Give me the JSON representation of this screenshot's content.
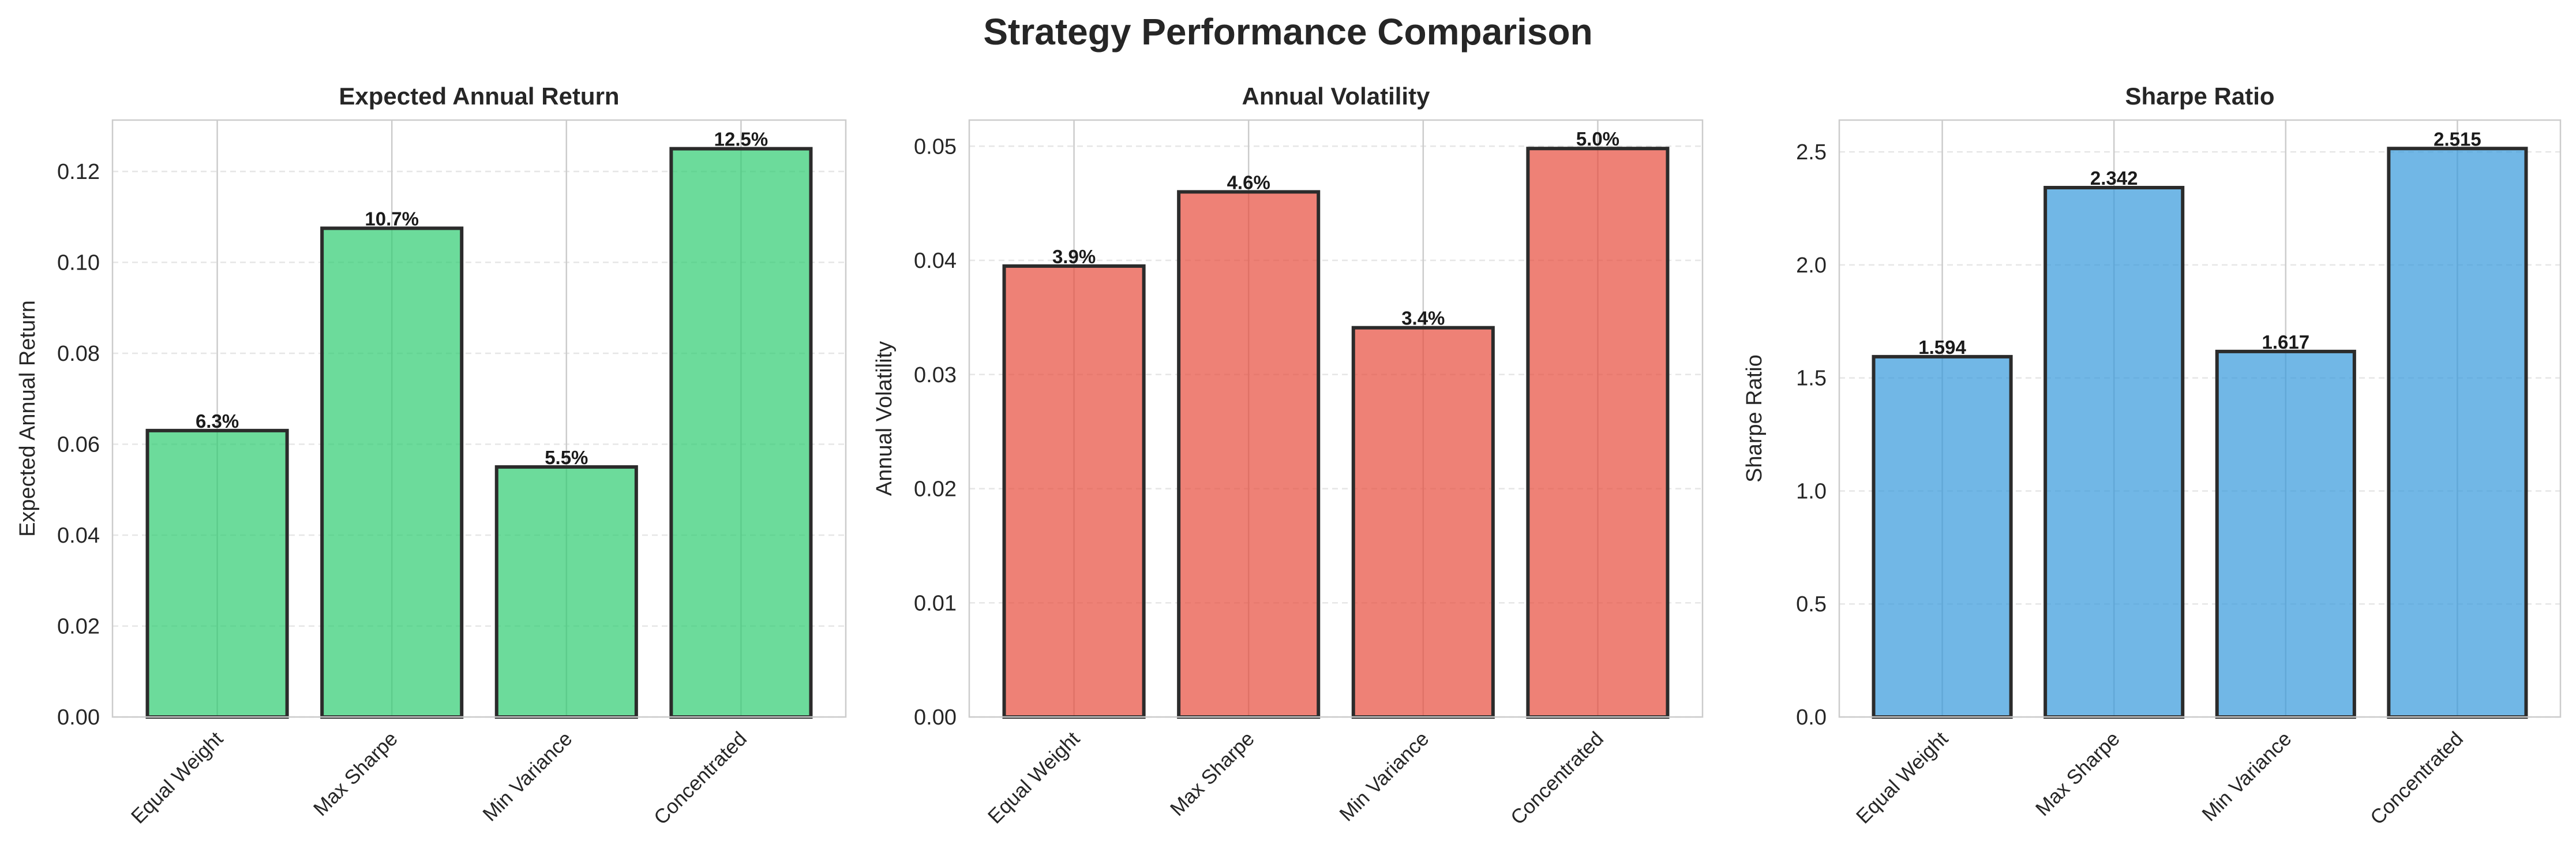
{
  "figure": {
    "title": "Strategy Performance Comparison"
  },
  "chart_data": [
    {
      "type": "bar",
      "title": "Expected Annual Return",
      "xlabel": "",
      "ylabel": "Expected Annual Return",
      "categories": [
        "Equal Weight",
        "Max Sharpe",
        "Min Variance",
        "Concentrated"
      ],
      "values": [
        0.063,
        0.1075,
        0.055,
        0.125
      ],
      "data_labels": [
        "6.3%",
        "10.7%",
        "5.5%",
        "12.5%"
      ],
      "ylim": [
        0,
        0.1313
      ],
      "yticks": [
        0.0,
        0.02,
        0.04,
        0.06,
        0.08,
        0.1,
        0.12
      ],
      "ytick_labels": [
        "0.00",
        "0.02",
        "0.04",
        "0.06",
        "0.08",
        "0.10",
        "0.12"
      ],
      "bar_color": "#2ecc71",
      "grid": true,
      "legend": "none"
    },
    {
      "type": "bar",
      "title": "Annual Volatility",
      "xlabel": "",
      "ylabel": "Annual Volatility",
      "categories": [
        "Equal Weight",
        "Max Sharpe",
        "Min Variance",
        "Concentrated"
      ],
      "values": [
        0.0395,
        0.046,
        0.0341,
        0.0498
      ],
      "data_labels": [
        "3.9%",
        "4.6%",
        "3.4%",
        "5.0%"
      ],
      "ylim": [
        0,
        0.05229
      ],
      "yticks": [
        0.0,
        0.01,
        0.02,
        0.03,
        0.04,
        0.05
      ],
      "ytick_labels": [
        "0.00",
        "0.01",
        "0.02",
        "0.03",
        "0.04",
        "0.05"
      ],
      "bar_color": "#e74c3c",
      "grid": true,
      "legend": "none"
    },
    {
      "type": "bar",
      "title": "Sharpe Ratio",
      "xlabel": "",
      "ylabel": "Sharpe Ratio",
      "categories": [
        "Equal Weight",
        "Max Sharpe",
        "Min Variance",
        "Concentrated"
      ],
      "values": [
        1.594,
        2.342,
        1.617,
        2.515
      ],
      "data_labels": [
        "1.594",
        "2.342",
        "1.617",
        "2.515"
      ],
      "ylim": [
        0,
        2.6408
      ],
      "yticks": [
        0.0,
        0.5,
        1.0,
        1.5,
        2.0,
        2.5
      ],
      "ytick_labels": [
        "0.0",
        "0.5",
        "1.0",
        "1.5",
        "2.0",
        "2.5"
      ],
      "bar_color": "#3498db",
      "grid": true,
      "legend": "none"
    }
  ]
}
